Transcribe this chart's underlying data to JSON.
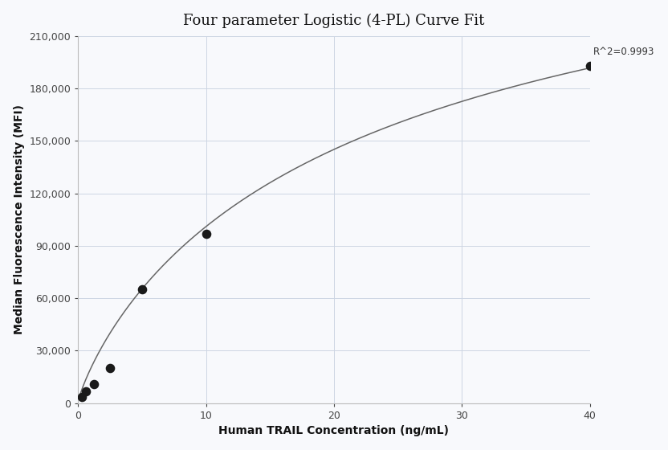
{
  "title": "Four parameter Logistic (4-PL) Curve Fit",
  "xlabel": "Human TRAIL Concentration (ng/mL)",
  "ylabel": "Median Fluorescence Intensity (MFI)",
  "r_squared": "R^2=0.9993",
  "data_points_x": [
    0.313,
    0.625,
    1.25,
    2.5,
    5.0,
    10.0,
    40.0
  ],
  "data_points_y": [
    3500,
    7000,
    11000,
    20000,
    65000,
    97000,
    193000
  ],
  "xlim": [
    0,
    40
  ],
  "ylim": [
    0,
    210000
  ],
  "yticks": [
    0,
    30000,
    60000,
    90000,
    120000,
    150000,
    180000,
    210000
  ],
  "xticks": [
    0,
    10,
    20,
    30,
    40
  ],
  "grid_color": "#cdd5e3",
  "curve_color": "#666666",
  "dot_color": "#1a1a1a",
  "bg_color": "#f8f9fc",
  "title_fontsize": 13,
  "label_fontsize": 10,
  "tick_fontsize": 9,
  "annotation_fontsize": 8.5
}
